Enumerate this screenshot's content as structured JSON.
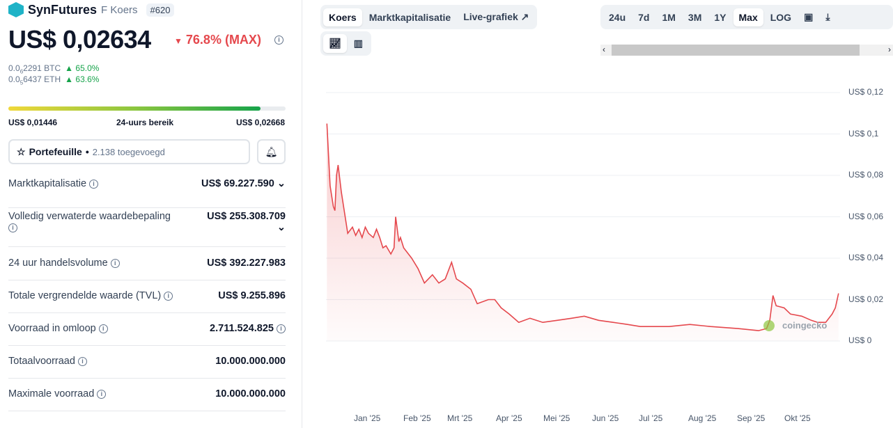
{
  "coin": {
    "name": "SynFutures",
    "symbol": "F Koers",
    "rank": "#620",
    "price": "US$ 0,02634",
    "change": "76.8% (MAX)",
    "btc": {
      "pre": "0.0",
      "sub": "6",
      "val": "2291 BTC",
      "chg": "65.0%"
    },
    "eth": {
      "pre": "0.0",
      "sub": "5",
      "val": "6437 ETH",
      "chg": "63.6%"
    }
  },
  "range": {
    "low": "US$ 0,01446",
    "label": "24-uurs bereik",
    "high": "US$ 0,02668",
    "position_pct": 91
  },
  "portfolio": {
    "label": "Portefeuille",
    "count": "2.138 toegevoegd"
  },
  "stats": [
    {
      "label": "Marktkapitalisatie",
      "value": "US$ 69.227.590"
    },
    {
      "label": "Volledig verwaterde waardebepaling",
      "value": "US$ 255.308.709"
    },
    {
      "label": "24 uur handelsvolume",
      "value": "US$ 392.227.983"
    },
    {
      "label": "Totale vergrendelde waarde (TVL)",
      "value": "US$ 9.255.896"
    },
    {
      "label": "Voorraad in omloop",
      "value": "2.711.524.825"
    },
    {
      "label": "Totaalvoorraad",
      "value": "10.000.000.000"
    },
    {
      "label": "Maximale voorraad",
      "value": "10.000.000.000"
    }
  ],
  "chart_tabs": [
    "Koers",
    "Marktkapitalisatie",
    "Live-grafiek"
  ],
  "ranges": [
    "24u",
    "7d",
    "1M",
    "3M",
    "1Y",
    "Max",
    "LOG"
  ],
  "watermark": "coingecko",
  "chart_data": {
    "type": "line",
    "title": "",
    "xlabel": "",
    "ylabel": "",
    "yticks": [
      "US$ 0,12",
      "US$ 0,1",
      "US$ 0,08",
      "US$ 0,06",
      "US$ 0,04",
      "US$ 0,02",
      "US$ 0"
    ],
    "xticks": [
      "Jan '25",
      "Feb '25",
      "Mrt '25",
      "Apr '25",
      "Mei '25",
      "Jun '25",
      "Jul '25",
      "Aug '25",
      "Sep '25",
      "Okt '25"
    ],
    "ylim": [
      0,
      0.12
    ],
    "x_unit": "days since 2025-01-01",
    "color": "#e5484d",
    "points": [
      [
        -26,
        0.105
      ],
      [
        -24,
        0.075
      ],
      [
        -22,
        0.065
      ],
      [
        -21,
        0.063
      ],
      [
        -20,
        0.08
      ],
      [
        -19,
        0.085
      ],
      [
        -17,
        0.072
      ],
      [
        -15,
        0.062
      ],
      [
        -13,
        0.052
      ],
      [
        -10,
        0.055
      ],
      [
        -8,
        0.051
      ],
      [
        -6,
        0.054
      ],
      [
        -4,
        0.05
      ],
      [
        -2,
        0.055
      ],
      [
        0,
        0.052
      ],
      [
        3,
        0.05
      ],
      [
        5,
        0.054
      ],
      [
        7,
        0.05
      ],
      [
        9,
        0.045
      ],
      [
        11,
        0.046
      ],
      [
        14,
        0.042
      ],
      [
        16,
        0.045
      ],
      [
        17,
        0.06
      ],
      [
        19,
        0.048
      ],
      [
        20,
        0.05
      ],
      [
        22,
        0.045
      ],
      [
        27,
        0.04
      ],
      [
        31,
        0.035
      ],
      [
        35,
        0.028
      ],
      [
        40,
        0.032
      ],
      [
        44,
        0.028
      ],
      [
        48,
        0.03
      ],
      [
        52,
        0.038
      ],
      [
        55,
        0.03
      ],
      [
        59,
        0.028
      ],
      [
        64,
        0.025
      ],
      [
        68,
        0.018
      ],
      [
        75,
        0.02
      ],
      [
        79,
        0.02
      ],
      [
        83,
        0.016
      ],
      [
        88,
        0.013
      ],
      [
        94,
        0.009
      ],
      [
        101,
        0.011
      ],
      [
        109,
        0.009
      ],
      [
        118,
        0.01
      ],
      [
        127,
        0.011
      ],
      [
        135,
        0.012
      ],
      [
        144,
        0.01
      ],
      [
        153,
        0.009
      ],
      [
        162,
        0.008
      ],
      [
        170,
        0.007
      ],
      [
        188,
        0.007
      ],
      [
        201,
        0.008
      ],
      [
        214,
        0.007
      ],
      [
        231,
        0.006
      ],
      [
        244,
        0.005
      ],
      [
        249,
        0.006
      ],
      [
        251,
        0.01
      ],
      [
        253,
        0.022
      ],
      [
        255,
        0.017
      ],
      [
        260,
        0.016
      ],
      [
        264,
        0.013
      ],
      [
        271,
        0.012
      ],
      [
        277,
        0.01
      ],
      [
        281,
        0.009
      ],
      [
        286,
        0.009
      ],
      [
        290,
        0.013
      ],
      [
        292,
        0.016
      ],
      [
        294,
        0.023
      ]
    ]
  }
}
